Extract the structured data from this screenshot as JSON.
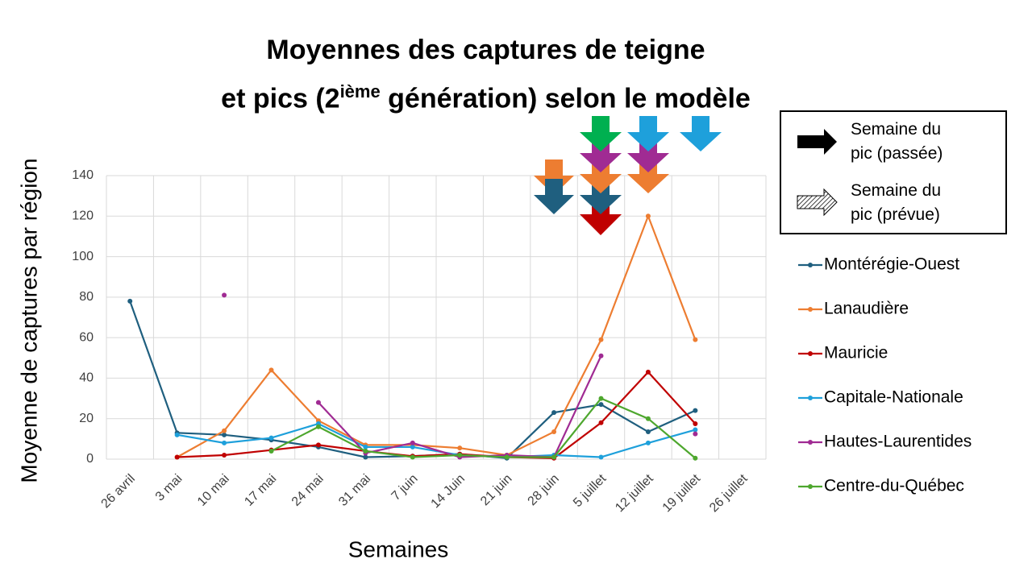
{
  "chart_data": {
    "type": "line",
    "title": {
      "line1": "Moyennes des captures de teigne",
      "line2_before": "et pics (2",
      "line2_sup": "ième",
      "line2_after": " génération) selon le modèle"
    },
    "x_label": "Semaines",
    "y_label": "Moyenne de captures par région",
    "categories": [
      "26 avril",
      "3 mai",
      "10 mai",
      "17 mai",
      "24 mai",
      "31 mai",
      "7 juin",
      "14 Juin",
      "21 juin",
      "28 juin",
      "5 juillet",
      "12 juillet",
      "19 juillet",
      "26 juillet"
    ],
    "ylim": [
      0,
      140
    ],
    "yticks": [
      0,
      20,
      40,
      60,
      80,
      100,
      120,
      140
    ],
    "grid": true,
    "series": [
      {
        "name": "Montérégie-Ouest",
        "color": "#1f5f7f",
        "values": [
          78,
          13,
          12,
          9.5,
          6,
          1,
          1.5,
          2.5,
          0.5,
          23,
          27,
          13.5,
          24,
          null
        ]
      },
      {
        "name": "Lanaudière",
        "color": "#ed7d31",
        "values": [
          null,
          1,
          14,
          44,
          19,
          7,
          7,
          5.5,
          2,
          13.5,
          59,
          120,
          59,
          null
        ]
      },
      {
        "name": "Mauricie",
        "color": "#c00000",
        "values": [
          null,
          1,
          2,
          4.5,
          7,
          4,
          1.5,
          2.5,
          1,
          0.5,
          18,
          43,
          17.5,
          null
        ]
      },
      {
        "name": "Capitale-Nationale",
        "color": "#1ea0db",
        "values": [
          null,
          12,
          8,
          10.5,
          17.5,
          6,
          6,
          2,
          1,
          2,
          1,
          8,
          14.5,
          null
        ]
      },
      {
        "name": "Hautes-Laurentides",
        "color": "#a02b93",
        "values": [
          null,
          null,
          81,
          null,
          28,
          3,
          8,
          1,
          2,
          1,
          51,
          null,
          12.5,
          null
        ]
      },
      {
        "name": "Centre-du-Québec",
        "color": "#4ea72e",
        "values": [
          null,
          null,
          null,
          4,
          16,
          4,
          1,
          2,
          1,
          1,
          30,
          20,
          0.5,
          null
        ]
      }
    ],
    "peak_legend": [
      "Semaine du pic (passée)",
      "Semaine du pic (prévue)"
    ]
  }
}
